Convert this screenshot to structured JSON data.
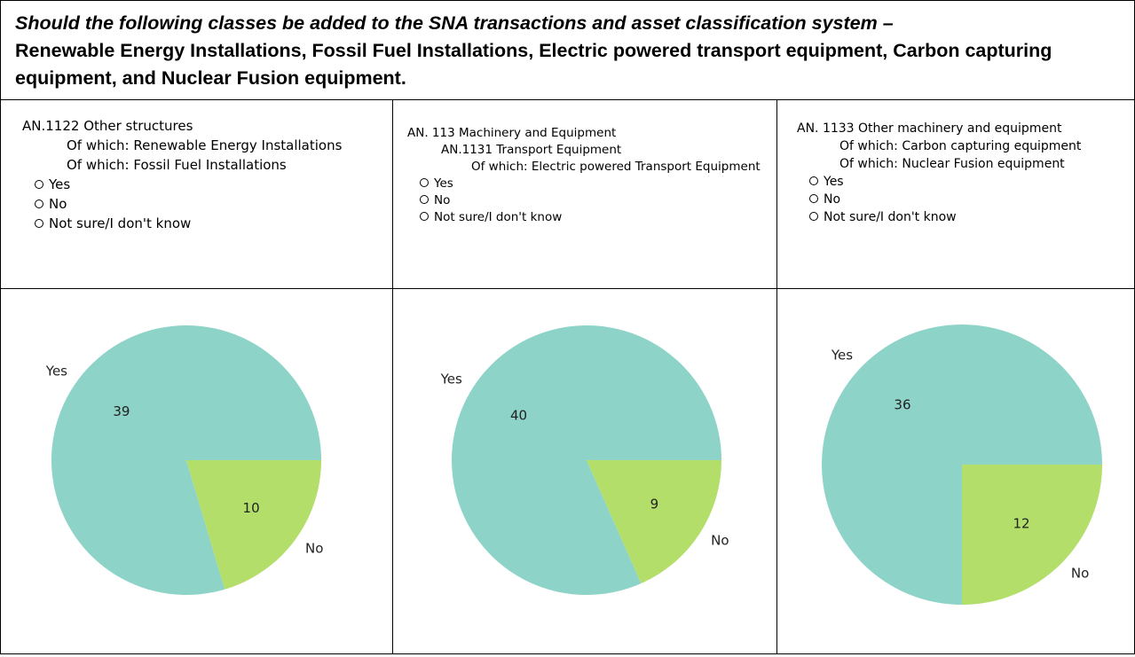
{
  "header": {
    "question_intro": "Should the following classes be added to the SNA transactions and asset classification system –",
    "question_classes": "Renewable Energy Installations, Fossil Fuel Installations, Electric powered transport equipment, Carbon capturing equipment, and Nuclear Fusion equipment."
  },
  "questions": [
    {
      "lines": [
        "AN.1122 Other structures",
        "Of which: Renewable Energy Installations",
        "Of which: Fossil Fuel Installations"
      ],
      "options": [
        "Yes",
        "No",
        "Not sure/I don't know"
      ]
    },
    {
      "lines": [
        "AN. 113 Machinery and Equipment",
        "AN.1131 Transport Equipment",
        "Of which: Electric powered Transport Equipment"
      ],
      "options": [
        "Yes",
        "No",
        "Not sure/I don't know"
      ]
    },
    {
      "lines": [
        "AN. 1133 Other machinery and equipment",
        "Of which: Carbon capturing equipment",
        "Of which: Nuclear Fusion equipment"
      ],
      "options": [
        "Yes",
        "No",
        "Not sure/I don't know"
      ]
    }
  ],
  "chart_data": [
    {
      "type": "pie",
      "categories": [
        "Yes",
        "No"
      ],
      "values": [
        39,
        10
      ],
      "colors": [
        "#8dd3c7",
        "#b3de69"
      ]
    },
    {
      "type": "pie",
      "categories": [
        "Yes",
        "No"
      ],
      "values": [
        40,
        9
      ],
      "colors": [
        "#8dd3c7",
        "#b3de69"
      ]
    },
    {
      "type": "pie",
      "categories": [
        "Yes",
        "No"
      ],
      "values": [
        36,
        12
      ],
      "colors": [
        "#8dd3c7",
        "#b3de69"
      ]
    }
  ]
}
